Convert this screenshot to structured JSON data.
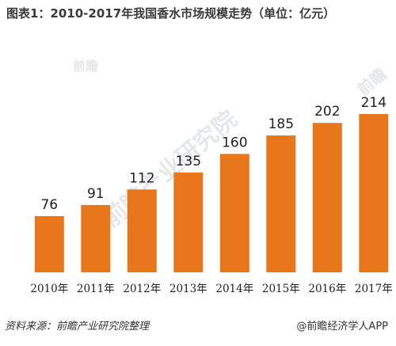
{
  "page": {
    "title": "图表1：2010-2017年我国香水市场规模走势（单位：亿元）",
    "source": "资料来源：前瞻产业研究院整理",
    "credit": "@前瞻经济学人APP",
    "watermark": "前瞻产业研究院",
    "watermark_small": "前瞻"
  },
  "chart_data": {
    "type": "bar",
    "title": "图表1：2010-2017年我国香水市场规模走势（单位：亿元）",
    "categories": [
      "2010年",
      "2011年",
      "2012年",
      "2013年",
      "2014年",
      "2015年",
      "2016年",
      "2017年"
    ],
    "values": [
      76,
      91,
      112,
      135,
      160,
      185,
      202,
      214
    ],
    "xlabel": "",
    "ylabel": "",
    "ylim": [
      0,
      230
    ],
    "grid": false,
    "legend": "none",
    "bar_color": "#e8771c"
  }
}
